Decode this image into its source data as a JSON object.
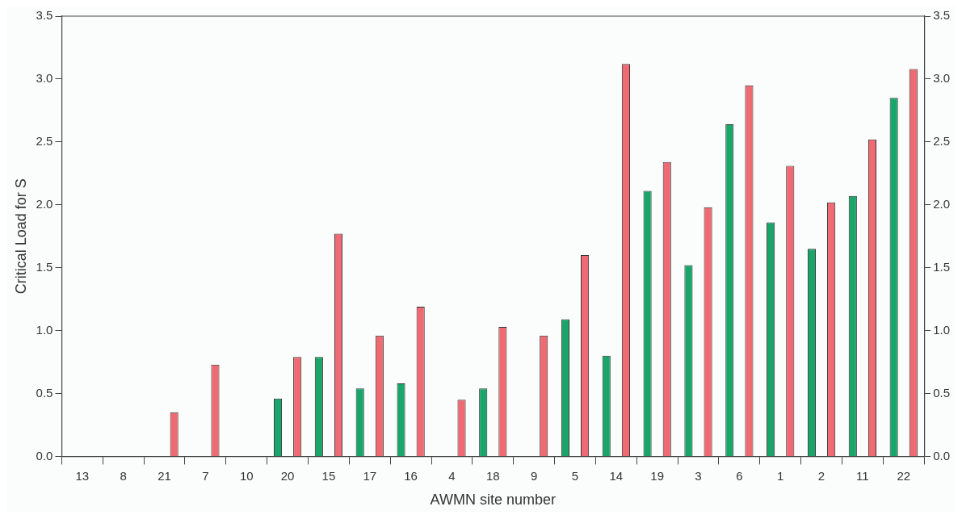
{
  "chart_data": {
    "type": "bar",
    "xlabel": "AWMN site number",
    "ylabel": "Critical Load for S",
    "categories": [
      "13",
      "8",
      "21",
      "7",
      "10",
      "20",
      "15",
      "17",
      "16",
      "4",
      "18",
      "9",
      "5",
      "14",
      "19",
      "3",
      "6",
      "1",
      "2",
      "11",
      "22"
    ],
    "series": [
      {
        "color": "#1aa56a",
        "values": [
          0,
          0,
          0,
          0,
          0,
          0.46,
          0.79,
          0.54,
          0.58,
          0,
          0.54,
          0,
          1.09,
          0.8,
          2.11,
          1.52,
          2.64,
          1.86,
          1.65,
          2.07,
          2.85
        ]
      },
      {
        "color": "#ef6a73",
        "values": [
          0,
          0,
          0.35,
          0.73,
          0,
          0.79,
          1.77,
          0.96,
          1.19,
          0.45,
          1.03,
          0.96,
          1.6,
          3.12,
          2.34,
          1.98,
          2.95,
          2.31,
          2.02,
          2.52,
          3.08
        ]
      }
    ],
    "ylim": [
      0,
      3.5
    ],
    "yticks": [
      {
        "value": 0,
        "label": "0.0"
      },
      {
        "value": 0.5,
        "label": "0.5"
      },
      {
        "value": 1,
        "label": "1.0"
      },
      {
        "value": 1.5,
        "label": "1.5"
      },
      {
        "value": 2,
        "label": "2.0"
      },
      {
        "value": 2.5,
        "label": "2.5"
      },
      {
        "value": 3,
        "label": "3.0"
      },
      {
        "value": 3.5,
        "label": "3.5"
      }
    ],
    "y2lim": [
      0,
      3.5
    ],
    "y2ticks": [
      {
        "value": 0,
        "label": "0.0"
      },
      {
        "value": 0.5,
        "label": "0.5"
      },
      {
        "value": 1,
        "label": "1.0"
      },
      {
        "value": 1.5,
        "label": "1.5"
      },
      {
        "value": 2,
        "label": "2.0"
      },
      {
        "value": 2.5,
        "label": "2.5"
      },
      {
        "value": 3,
        "label": "3.0"
      },
      {
        "value": 3.5,
        "label": "3.5"
      }
    ],
    "grid": false,
    "legend": false
  }
}
